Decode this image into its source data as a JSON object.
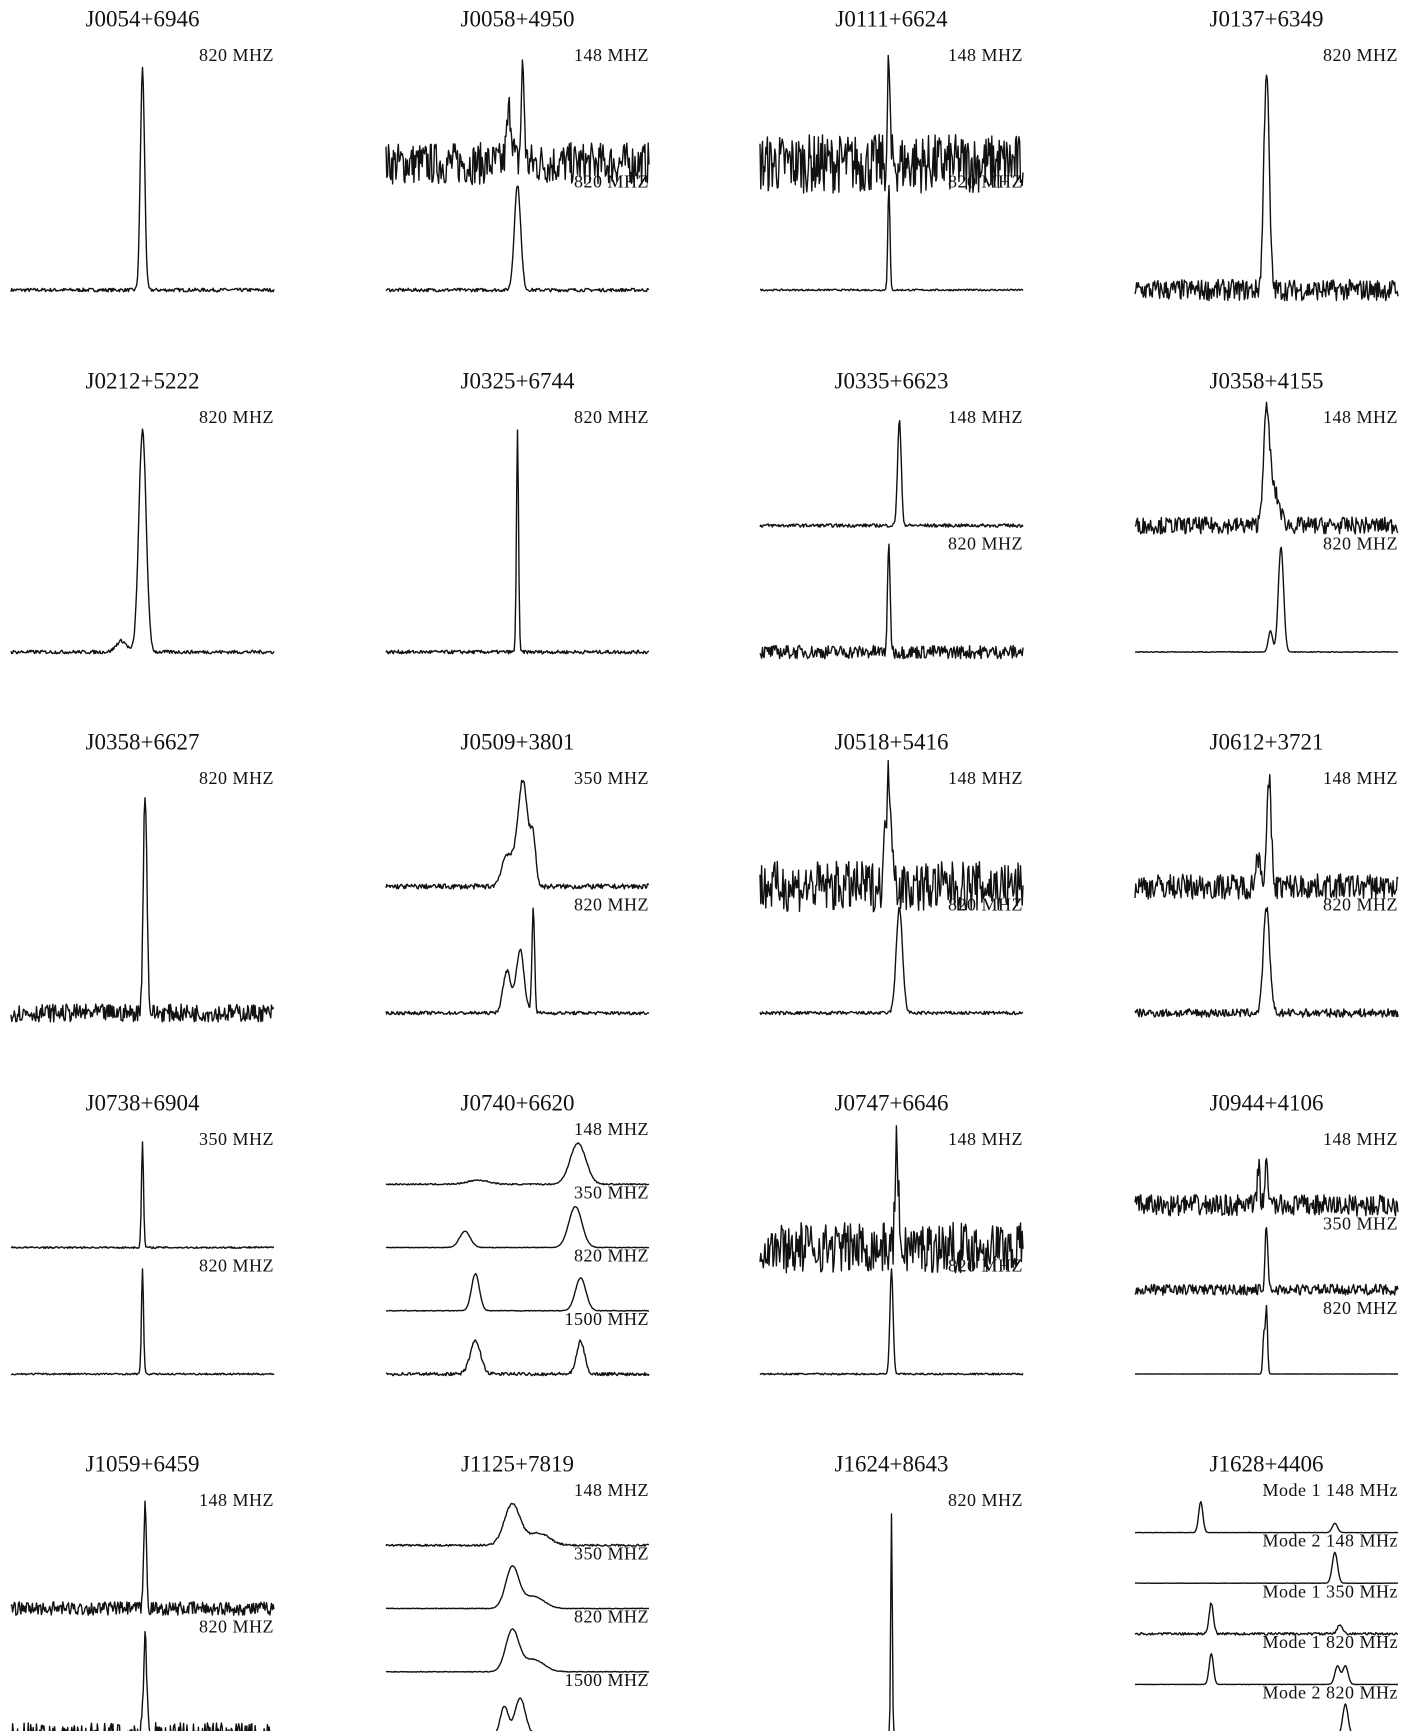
{
  "panels": [
    {
      "name": "J0054+6946",
      "labels": [
        "820 MHZ"
      ]
    },
    {
      "name": "J0058+4950",
      "labels": [
        "148 MHZ",
        "820 MHZ"
      ]
    },
    {
      "name": "J0111+6624",
      "labels": [
        "148 MHZ",
        "820 MHZ"
      ]
    },
    {
      "name": "J0137+6349",
      "labels": [
        "820 MHZ"
      ]
    },
    {
      "name": "J0212+5222",
      "labels": [
        "820 MHZ"
      ]
    },
    {
      "name": "J0325+6744",
      "labels": [
        "820 MHZ"
      ]
    },
    {
      "name": "J0335+6623",
      "labels": [
        "148 MHZ",
        "820 MHZ"
      ]
    },
    {
      "name": "J0358+4155",
      "labels": [
        "148 MHZ",
        "820 MHZ"
      ]
    },
    {
      "name": "J0358+6627",
      "labels": [
        "820 MHZ"
      ]
    },
    {
      "name": "J0509+3801",
      "labels": [
        "350 MHZ",
        "820 MHZ"
      ]
    },
    {
      "name": "J0518+5416",
      "labels": [
        "148 MHZ",
        "820 MHZ"
      ]
    },
    {
      "name": "J0612+3721",
      "labels": [
        "148 MHZ",
        "820 MHZ"
      ]
    },
    {
      "name": "J0738+6904",
      "labels": [
        "350 MHZ",
        "820 MHZ"
      ]
    },
    {
      "name": "J0740+6620",
      "labels": [
        "148 MHZ",
        "350 MHZ",
        "820 MHZ",
        "1500 MHZ"
      ]
    },
    {
      "name": "J0747+6646",
      "labels": [
        "148 MHZ",
        "820 MHZ"
      ]
    },
    {
      "name": "J0944+4106",
      "labels": [
        "148 MHZ",
        "350 MHZ",
        "820 MHZ"
      ]
    },
    {
      "name": "J1059+6459",
      "labels": [
        "148 MHZ",
        "820 MHZ"
      ]
    },
    {
      "name": "J1125+7819",
      "labels": [
        "148 MHZ",
        "350 MHZ",
        "820 MHZ",
        "1500 MHZ"
      ]
    },
    {
      "name": "J1624+8643",
      "labels": [
        "820 MHZ"
      ]
    },
    {
      "name": "J1628+4406",
      "labels": [
        "Mode 1 148 MHz",
        "Mode 2 148 MHz",
        "Mode 1 350 MHz",
        "Mode 1 820 MHz",
        "Mode 2 820 MHz"
      ]
    }
  ]
}
